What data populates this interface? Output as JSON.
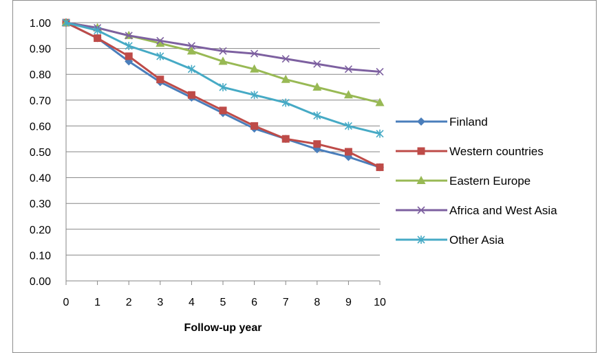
{
  "chart_data": {
    "type": "line",
    "title": "",
    "xlabel": "Follow-up year",
    "ylabel": "",
    "x": [
      0,
      1,
      2,
      3,
      4,
      5,
      6,
      7,
      8,
      9,
      10
    ],
    "x_tick_labels": [
      "0",
      "1",
      "2",
      "3",
      "4",
      "5",
      "6",
      "7",
      "8",
      "9",
      "10"
    ],
    "ylim": [
      0,
      1
    ],
    "y_ticks": [
      0,
      0.1,
      0.2,
      0.3,
      0.4,
      0.5,
      0.6,
      0.7,
      0.8,
      0.9,
      1.0
    ],
    "y_tick_labels": [
      "0.00",
      "0.10",
      "0.20",
      "0.30",
      "0.40",
      "0.50",
      "0.60",
      "0.70",
      "0.80",
      "0.90",
      "1.00"
    ],
    "grid": "horizontal",
    "legend_position": "right",
    "series": [
      {
        "name": "Finland",
        "color": "#4a7ebb",
        "marker": "diamond",
        "values": [
          1.0,
          0.94,
          0.85,
          0.77,
          0.71,
          0.65,
          0.59,
          0.55,
          0.51,
          0.48,
          0.44
        ]
      },
      {
        "name": "Western countries",
        "color": "#be4b48",
        "marker": "square",
        "values": [
          1.0,
          0.94,
          0.87,
          0.78,
          0.72,
          0.66,
          0.6,
          0.55,
          0.53,
          0.5,
          0.44
        ]
      },
      {
        "name": "Eastern Europe",
        "color": "#98b954",
        "marker": "triangle",
        "values": [
          1.0,
          0.98,
          0.95,
          0.92,
          0.89,
          0.85,
          0.82,
          0.78,
          0.75,
          0.72,
          0.69
        ]
      },
      {
        "name": "Africa and West Asia",
        "color": "#7d60a0",
        "marker": "x",
        "values": [
          1.0,
          0.98,
          0.95,
          0.93,
          0.91,
          0.89,
          0.88,
          0.86,
          0.84,
          0.82,
          0.81
        ]
      },
      {
        "name": "Other Asia",
        "color": "#46aac5",
        "marker": "star",
        "values": [
          1.0,
          0.97,
          0.91,
          0.87,
          0.82,
          0.75,
          0.72,
          0.69,
          0.64,
          0.6,
          0.57
        ]
      }
    ]
  }
}
